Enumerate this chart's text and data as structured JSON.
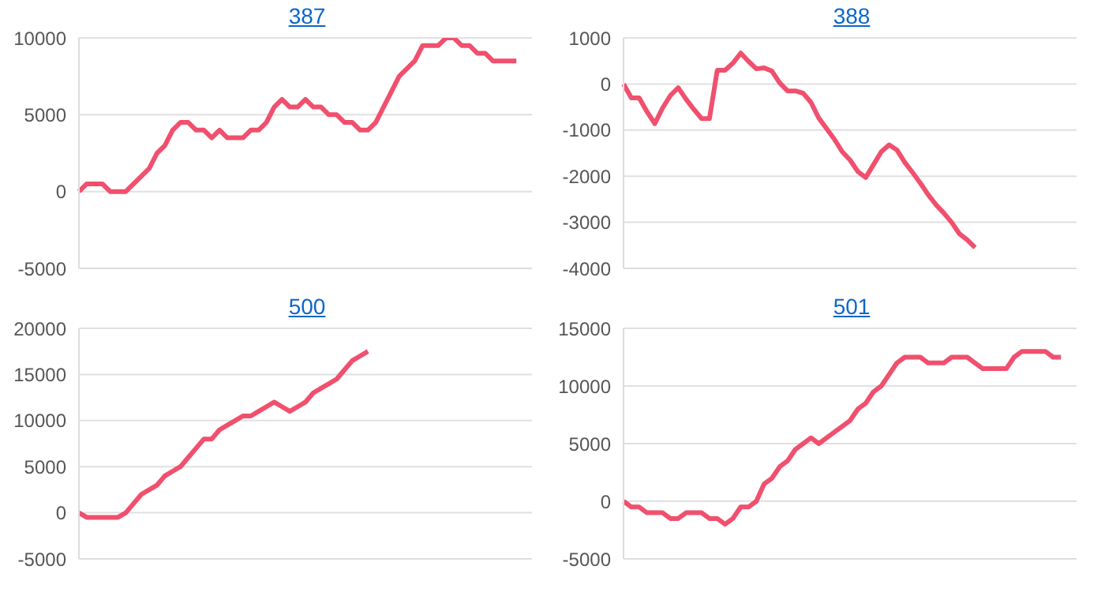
{
  "chart_data": [
    {
      "type": "line",
      "title": "387",
      "categories": [
        null,
        null,
        null,
        null,
        null,
        null,
        null,
        null,
        null,
        null,
        null,
        null,
        null,
        null,
        null,
        null,
        null,
        null,
        null,
        null,
        null,
        null,
        null,
        null,
        null,
        null,
        null,
        null,
        null,
        null,
        null,
        null,
        null,
        null,
        null,
        null,
        null,
        null,
        null,
        null,
        null,
        null,
        null,
        null,
        null,
        null,
        null,
        null,
        null,
        null,
        null,
        null,
        null,
        null,
        null,
        null,
        null,
        null,
        null
      ],
      "series": [
        {
          "color": "#f0506e",
          "values": [
            0,
            500,
            500,
            500,
            0,
            0,
            0,
            500,
            1000,
            1500,
            2500,
            3000,
            4000,
            4500,
            4500,
            4000,
            4000,
            3500,
            4000,
            3500,
            3500,
            3500,
            4000,
            4000,
            4500,
            5500,
            6000,
            5500,
            5500,
            6000,
            5500,
            5500,
            5000,
            5000,
            4500,
            4500,
            4000,
            4000,
            4500,
            5500,
            6500,
            7500,
            8000,
            8500,
            9500,
            9500,
            9500,
            10000,
            10000,
            9500,
            9500,
            9000,
            9000,
            8500,
            8500,
            8500,
            8500,
            null,
            null
          ]
        }
      ],
      "ylim": [
        -5000,
        10000
      ],
      "yticks": [
        -5000,
        0,
        5000,
        10000
      ],
      "grid": "y",
      "tick_labels": "y",
      "marker": "none",
      "line_style": "solid"
    },
    {
      "type": "line",
      "title": "388",
      "categories": [
        null,
        null,
        null,
        null,
        null,
        null,
        null,
        null,
        null,
        null,
        null,
        null,
        null,
        null,
        null,
        null,
        null,
        null,
        null,
        null,
        null,
        null,
        null,
        null,
        null,
        null,
        null,
        null,
        null,
        null,
        null,
        null,
        null,
        null,
        null,
        null,
        null,
        null,
        null,
        null,
        null,
        null,
        null,
        null,
        null,
        null,
        null,
        null,
        null,
        null,
        null,
        null,
        null,
        null,
        null,
        null,
        null,
        null,
        null
      ],
      "series": [
        {
          "color": "#f0506e",
          "values": [
            0,
            -300,
            -300,
            -600,
            -860,
            -520,
            -250,
            -80,
            -330,
            -550,
            -750,
            -750,
            300,
            300,
            450,
            670,
            490,
            330,
            350,
            280,
            20,
            -150,
            -150,
            -200,
            -400,
            -740,
            -970,
            -1200,
            -1470,
            -1650,
            -1900,
            -2030,
            -1750,
            -1470,
            -1320,
            -1430,
            -1700,
            -1920,
            -2150,
            -2400,
            -2620,
            -2800,
            -3000,
            -3250,
            -3380,
            -3550,
            null,
            null,
            null,
            null,
            null,
            null,
            null,
            null,
            null,
            null,
            null,
            null,
            null
          ]
        }
      ],
      "ylim": [
        -4000,
        1000
      ],
      "yticks": [
        -4000,
        -3000,
        -2000,
        -1000,
        0,
        1000
      ],
      "grid": "y",
      "tick_labels": "y",
      "marker": "none",
      "line_style": "solid"
    },
    {
      "type": "line",
      "title": "500",
      "categories": [
        null,
        null,
        null,
        null,
        null,
        null,
        null,
        null,
        null,
        null,
        null,
        null,
        null,
        null,
        null,
        null,
        null,
        null,
        null,
        null,
        null,
        null,
        null,
        null,
        null,
        null,
        null,
        null,
        null,
        null,
        null,
        null,
        null,
        null,
        null,
        null,
        null,
        null,
        null,
        null,
        null,
        null,
        null,
        null,
        null,
        null,
        null,
        null,
        null,
        null,
        null,
        null,
        null,
        null,
        null,
        null,
        null,
        null,
        null
      ],
      "series": [
        {
          "color": "#f0506e",
          "values": [
            0,
            -500,
            -500,
            -500,
            -500,
            -500,
            0,
            1000,
            2000,
            2500,
            3000,
            4000,
            4500,
            5000,
            6000,
            7000,
            8000,
            8000,
            9000,
            9500,
            10000,
            10500,
            10500,
            11000,
            11500,
            12000,
            11500,
            11000,
            11500,
            12000,
            13000,
            13500,
            14000,
            14500,
            15500,
            16500,
            17000,
            17500,
            null,
            null,
            null,
            null,
            null,
            null,
            null,
            null,
            null,
            null,
            null,
            null,
            null,
            null,
            null,
            null,
            null,
            null,
            null,
            null,
            null
          ]
        }
      ],
      "ylim": [
        -5000,
        20000
      ],
      "yticks": [
        -5000,
        0,
        5000,
        10000,
        15000,
        20000
      ],
      "grid": "y",
      "tick_labels": "y",
      "marker": "none",
      "line_style": "solid"
    },
    {
      "type": "line",
      "title": "501",
      "categories": [
        null,
        null,
        null,
        null,
        null,
        null,
        null,
        null,
        null,
        null,
        null,
        null,
        null,
        null,
        null,
        null,
        null,
        null,
        null,
        null,
        null,
        null,
        null,
        null,
        null,
        null,
        null,
        null,
        null,
        null,
        null,
        null,
        null,
        null,
        null,
        null,
        null,
        null,
        null,
        null,
        null,
        null,
        null,
        null,
        null,
        null,
        null,
        null,
        null,
        null,
        null,
        null,
        null,
        null,
        null,
        null,
        null,
        null,
        null
      ],
      "series": [
        {
          "color": "#f0506e",
          "values": [
            0,
            -500,
            -500,
            -1000,
            -1000,
            -1000,
            -1500,
            -1500,
            -1000,
            -1000,
            -1000,
            -1500,
            -1500,
            -2000,
            -1500,
            -500,
            -500,
            0,
            1500,
            2000,
            3000,
            3500,
            4500,
            5000,
            5500,
            5000,
            5500,
            6000,
            6500,
            7000,
            8000,
            8500,
            9500,
            10000,
            11000,
            12000,
            12500,
            12500,
            12500,
            12000,
            12000,
            12000,
            12500,
            12500,
            12500,
            12000,
            11500,
            11500,
            11500,
            11500,
            12500,
            13000,
            13000,
            13000,
            13000,
            12500,
            12500,
            null,
            null
          ]
        }
      ],
      "ylim": [
        -5000,
        15000
      ],
      "yticks": [
        -5000,
        0,
        5000,
        10000,
        15000
      ],
      "grid": "y",
      "tick_labels": "y",
      "marker": "none",
      "line_style": "solid"
    }
  ]
}
